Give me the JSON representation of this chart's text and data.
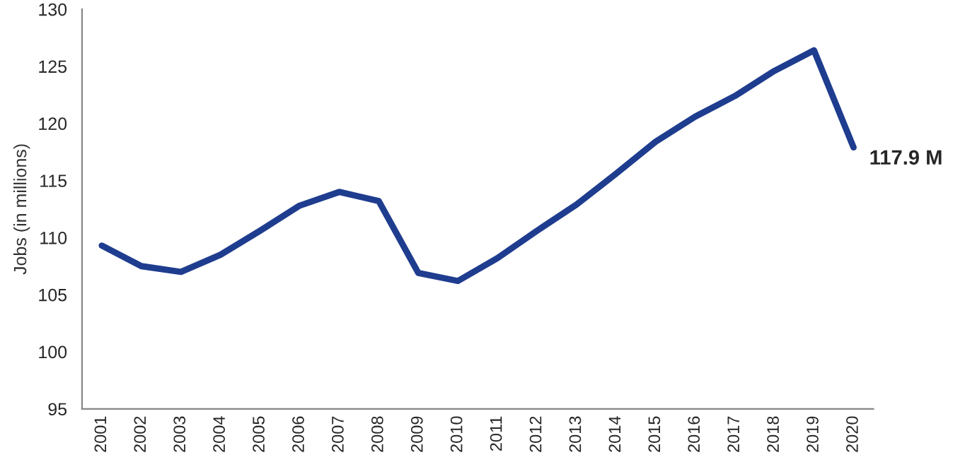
{
  "chart_data": {
    "type": "line",
    "ylabel": "Jobs (in millions)",
    "categories": [
      "2001",
      "2002",
      "2003",
      "2004",
      "2005",
      "2006",
      "2007",
      "2008",
      "2009",
      "2010",
      "2011",
      "2012",
      "2013",
      "2014",
      "2015",
      "2016",
      "2017",
      "2018",
      "2019",
      "2020"
    ],
    "series": [
      {
        "color": "#1f3d8f",
        "values": [
          109.3,
          107.5,
          107.0,
          108.5,
          110.6,
          112.8,
          114.0,
          113.2,
          106.9,
          106.2,
          108.2,
          110.6,
          112.9,
          115.6,
          118.4,
          120.6,
          122.4,
          124.6,
          126.4,
          117.9
        ]
      }
    ],
    "value_labels": [
      null,
      null,
      null,
      null,
      null,
      null,
      null,
      null,
      null,
      null,
      null,
      null,
      null,
      null,
      null,
      null,
      null,
      null,
      null,
      "117.9 M"
    ],
    "ylim": [
      95,
      130
    ],
    "yticks": [
      95,
      100,
      105,
      110,
      115,
      120,
      125,
      130
    ],
    "grid": false,
    "marker": "none",
    "line_style": "solid"
  }
}
